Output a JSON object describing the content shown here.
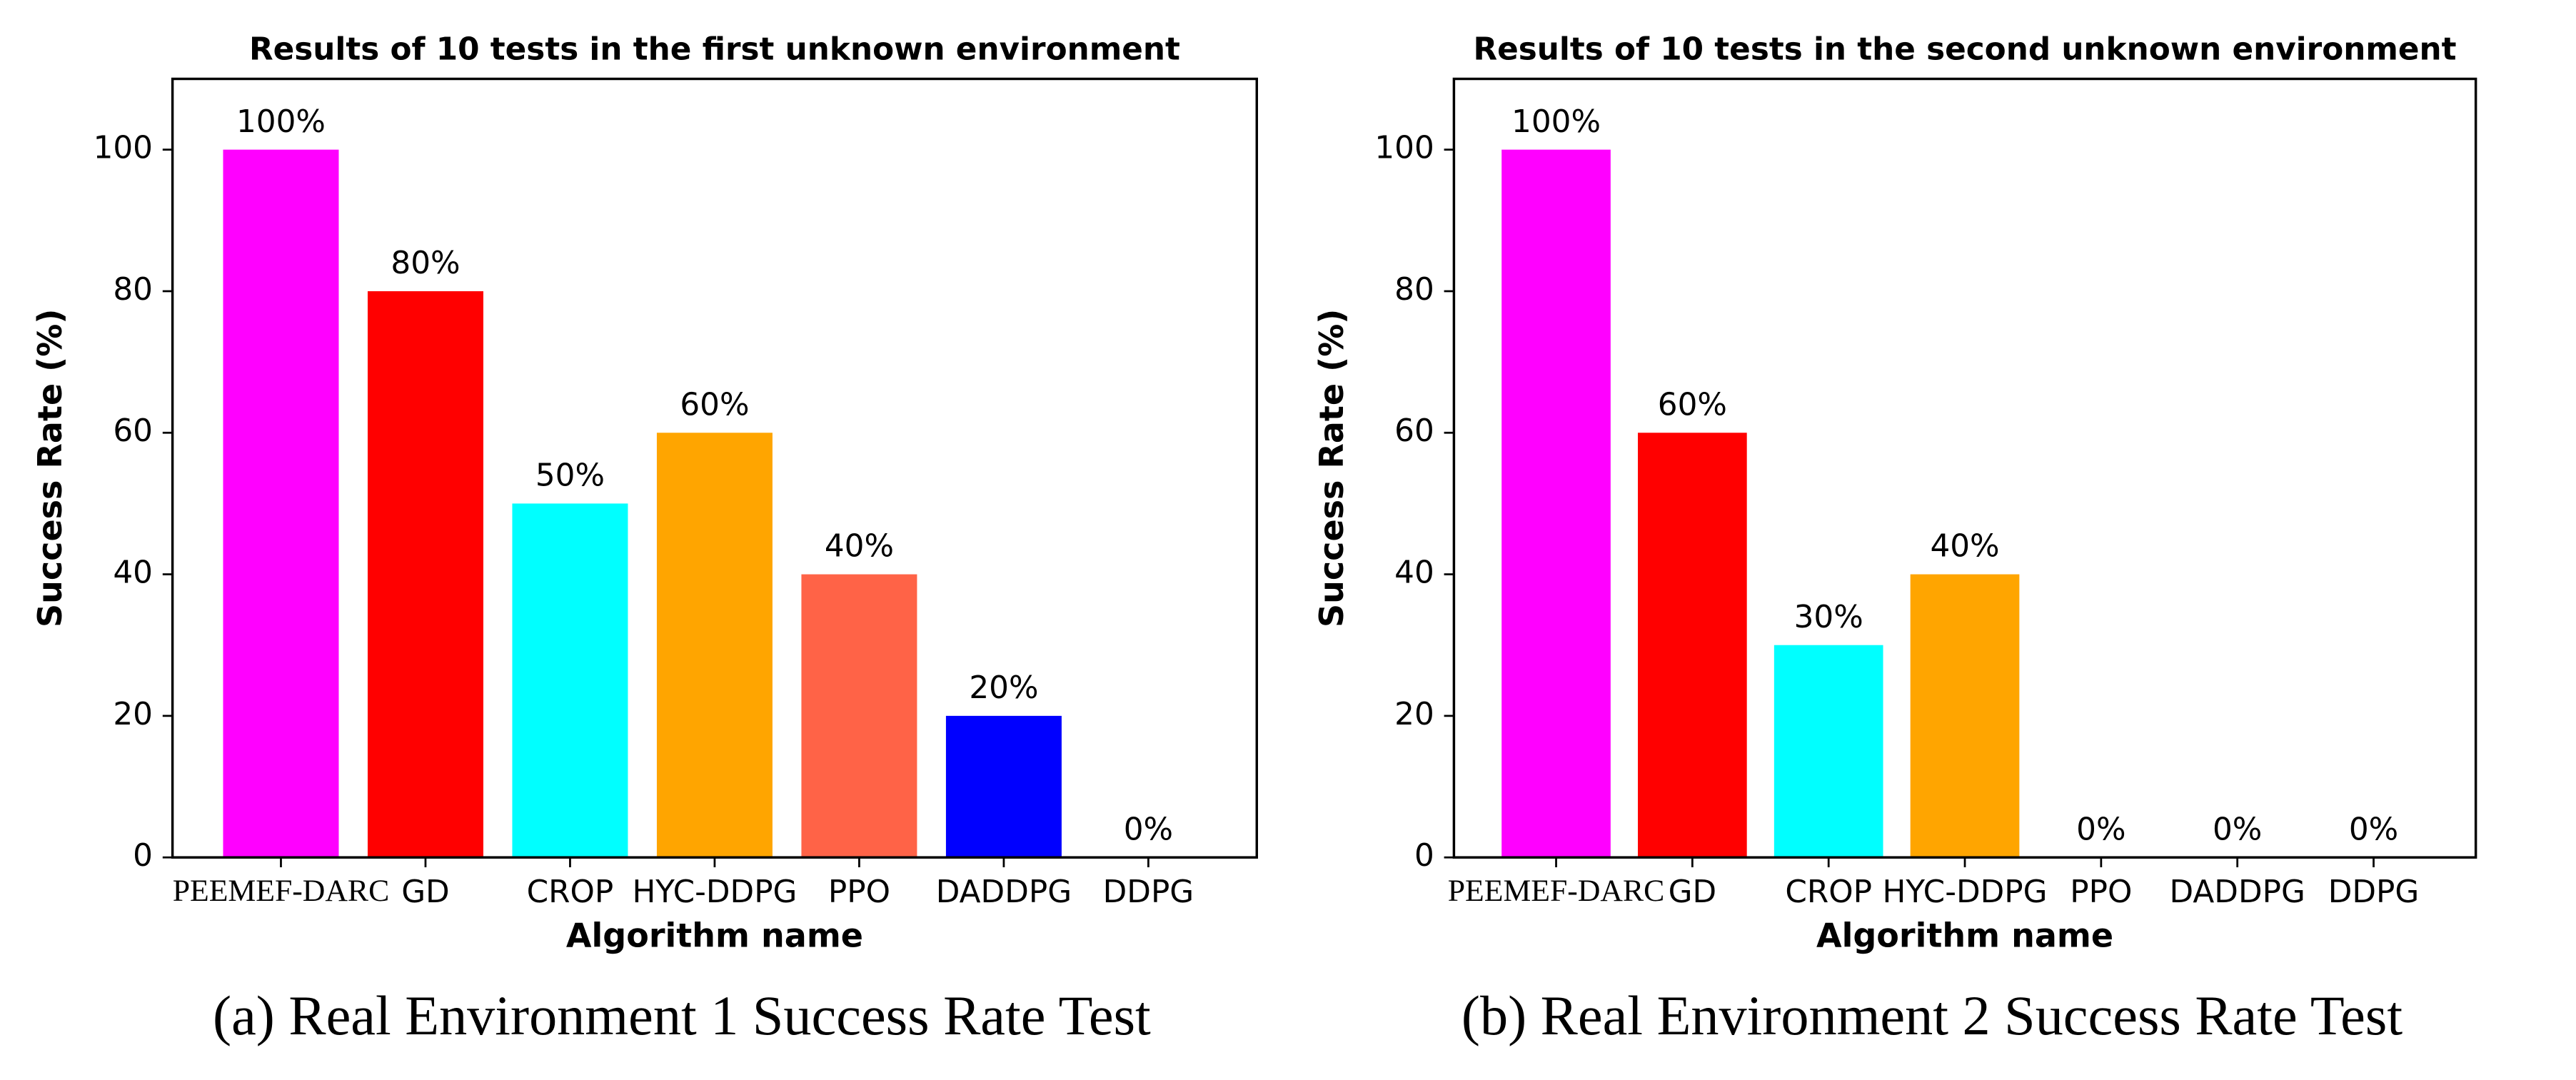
{
  "chart_data": [
    {
      "type": "bar",
      "title": "Results of 10 tests in the first unknown environment",
      "xlabel": "Algorithm name",
      "ylabel": "Success Rate (%)",
      "categories": [
        "PEEMEF-DARC",
        "GD",
        "CROP",
        "HYC-DDPG",
        "PPO",
        "DADDPG",
        "DDPG"
      ],
      "values": [
        100,
        80,
        50,
        60,
        40,
        20,
        0
      ],
      "value_labels": [
        "100%",
        "80%",
        "50%",
        "60%",
        "40%",
        "20%",
        "0%"
      ],
      "colors": [
        "#ff00ff",
        "#ff0000",
        "#00ffff",
        "#ffa500",
        "#ff6347",
        "#0000ff",
        "#000000"
      ],
      "ylim": [
        0,
        110
      ],
      "yticks": [
        0,
        20,
        40,
        60,
        80,
        100
      ],
      "caption": "(a) Real Environment 1 Success Rate Test"
    },
    {
      "type": "bar",
      "title": "Results of 10 tests in the second unknown environment",
      "xlabel": "Algorithm name",
      "ylabel": "Success Rate (%)",
      "categories": [
        "PEEMEF-DARC",
        "GD",
        "CROP",
        "HYC-DDPG",
        "PPO",
        "DADDPG",
        "DDPG"
      ],
      "values": [
        100,
        60,
        30,
        40,
        0,
        0,
        0
      ],
      "value_labels": [
        "100%",
        "60%",
        "30%",
        "40%",
        "0%",
        "0%",
        "0%"
      ],
      "colors": [
        "#ff00ff",
        "#ff0000",
        "#00ffff",
        "#ffa500",
        "#ff6347",
        "#0000ff",
        "#000000"
      ],
      "ylim": [
        0,
        110
      ],
      "yticks": [
        0,
        20,
        40,
        60,
        80,
        100
      ],
      "caption": "(b) Real Environment 2 Success Rate Test"
    }
  ]
}
